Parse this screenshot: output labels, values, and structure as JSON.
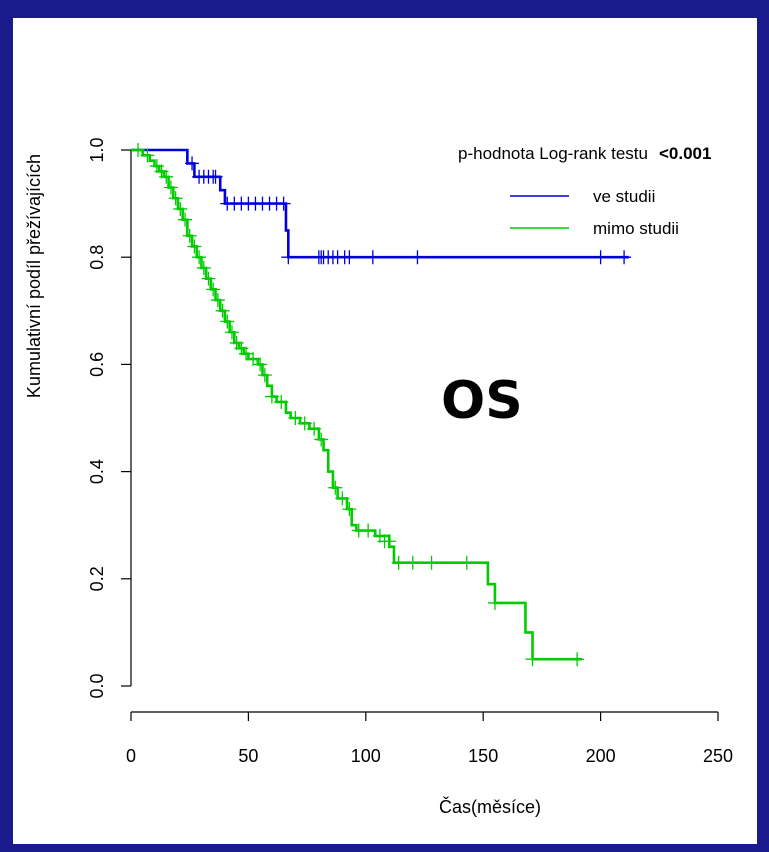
{
  "chart_data": {
    "type": "line",
    "subtype": "kaplan-meier",
    "title": "",
    "overlay_label": "OS",
    "xlabel": "Čas(měsíce)",
    "ylabel": "Kumulativní podíl přežívajících",
    "xlim": [
      0,
      250
    ],
    "ylim": [
      0.0,
      1.0
    ],
    "x_ticks": [
      0,
      50,
      100,
      150,
      200,
      250
    ],
    "y_ticks": [
      0.0,
      0.2,
      0.4,
      0.6,
      0.8,
      1.0
    ],
    "y_tick_labels": [
      "0.0",
      "0.2",
      "0.4",
      "0.6",
      "0.8",
      "1.0"
    ],
    "legend_placement": "top-right",
    "p_value_label": "p-hodnota Log-rank testu",
    "p_value": "<0.001",
    "series": [
      {
        "name": "ve studii",
        "color": "#0000dd",
        "steps": [
          [
            0,
            1.0
          ],
          [
            24,
            0.975
          ],
          [
            27,
            0.95
          ],
          [
            38,
            0.925
          ],
          [
            40,
            0.9
          ],
          [
            66,
            0.85
          ],
          [
            67,
            0.8
          ],
          [
            212,
            0.8
          ]
        ],
        "censored": [
          [
            26,
            0.975
          ],
          [
            29,
            0.95
          ],
          [
            31,
            0.95
          ],
          [
            33,
            0.95
          ],
          [
            35,
            0.95
          ],
          [
            36,
            0.95
          ],
          [
            41,
            0.9
          ],
          [
            44,
            0.9
          ],
          [
            47,
            0.9
          ],
          [
            50,
            0.9
          ],
          [
            53,
            0.9
          ],
          [
            56,
            0.9
          ],
          [
            59,
            0.9
          ],
          [
            62,
            0.9
          ],
          [
            65,
            0.9
          ],
          [
            67,
            0.8
          ],
          [
            80,
            0.8
          ],
          [
            81,
            0.8
          ],
          [
            82,
            0.8
          ],
          [
            84,
            0.8
          ],
          [
            86,
            0.8
          ],
          [
            88,
            0.8
          ],
          [
            91,
            0.8
          ],
          [
            93,
            0.8
          ],
          [
            103,
            0.8
          ],
          [
            122,
            0.8
          ],
          [
            200,
            0.8
          ],
          [
            210,
            0.8
          ]
        ]
      },
      {
        "name": "mimo studii",
        "color": "#00cc00",
        "steps": [
          [
            0,
            1.0
          ],
          [
            5,
            0.99
          ],
          [
            8,
            0.98
          ],
          [
            10,
            0.97
          ],
          [
            12,
            0.96
          ],
          [
            14,
            0.95
          ],
          [
            16,
            0.93
          ],
          [
            18,
            0.91
          ],
          [
            20,
            0.89
          ],
          [
            22,
            0.87
          ],
          [
            24,
            0.84
          ],
          [
            26,
            0.82
          ],
          [
            28,
            0.8
          ],
          [
            30,
            0.78
          ],
          [
            32,
            0.76
          ],
          [
            34,
            0.74
          ],
          [
            36,
            0.72
          ],
          [
            38,
            0.7
          ],
          [
            40,
            0.68
          ],
          [
            42,
            0.66
          ],
          [
            44,
            0.64
          ],
          [
            46,
            0.63
          ],
          [
            48,
            0.62
          ],
          [
            50,
            0.61
          ],
          [
            54,
            0.6
          ],
          [
            56,
            0.58
          ],
          [
            58,
            0.56
          ],
          [
            60,
            0.54
          ],
          [
            62,
            0.53
          ],
          [
            66,
            0.51
          ],
          [
            68,
            0.5
          ],
          [
            72,
            0.49
          ],
          [
            76,
            0.48
          ],
          [
            80,
            0.46
          ],
          [
            82,
            0.44
          ],
          [
            84,
            0.4
          ],
          [
            86,
            0.37
          ],
          [
            88,
            0.35
          ],
          [
            92,
            0.33
          ],
          [
            94,
            0.3
          ],
          [
            96,
            0.29
          ],
          [
            104,
            0.28
          ],
          [
            110,
            0.26
          ],
          [
            112,
            0.23
          ],
          [
            152,
            0.19
          ],
          [
            155,
            0.155
          ],
          [
            168,
            0.1
          ],
          [
            171,
            0.05
          ],
          [
            192,
            0.05
          ]
        ],
        "censored": [
          [
            3,
            1.0
          ],
          [
            7,
            0.99
          ],
          [
            11,
            0.97
          ],
          [
            13,
            0.96
          ],
          [
            15,
            0.95
          ],
          [
            17,
            0.93
          ],
          [
            19,
            0.91
          ],
          [
            21,
            0.89
          ],
          [
            23,
            0.87
          ],
          [
            25,
            0.84
          ],
          [
            27,
            0.82
          ],
          [
            29,
            0.8
          ],
          [
            31,
            0.78
          ],
          [
            33,
            0.76
          ],
          [
            35,
            0.74
          ],
          [
            37,
            0.72
          ],
          [
            39,
            0.7
          ],
          [
            41,
            0.68
          ],
          [
            43,
            0.66
          ],
          [
            45,
            0.64
          ],
          [
            47,
            0.63
          ],
          [
            49,
            0.62
          ],
          [
            52,
            0.61
          ],
          [
            55,
            0.6
          ],
          [
            57,
            0.58
          ],
          [
            60,
            0.54
          ],
          [
            64,
            0.53
          ],
          [
            70,
            0.5
          ],
          [
            74,
            0.49
          ],
          [
            78,
            0.48
          ],
          [
            81,
            0.46
          ],
          [
            87,
            0.37
          ],
          [
            90,
            0.35
          ],
          [
            93,
            0.33
          ],
          [
            97,
            0.29
          ],
          [
            101,
            0.29
          ],
          [
            106,
            0.28
          ],
          [
            108,
            0.27
          ],
          [
            110,
            0.27
          ],
          [
            114,
            0.23
          ],
          [
            120,
            0.23
          ],
          [
            128,
            0.23
          ],
          [
            143,
            0.23
          ],
          [
            155,
            0.155
          ],
          [
            171,
            0.05
          ],
          [
            190,
            0.05
          ]
        ]
      }
    ]
  }
}
